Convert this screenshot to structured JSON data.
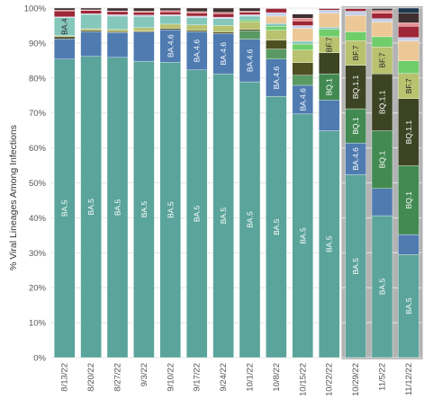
{
  "chart_data": {
    "type": "bar",
    "stacked": true,
    "ylabel": "% Viral Lineages Among Infections",
    "ylim": [
      0,
      100
    ],
    "yticks": [
      "0%",
      "10%",
      "20%",
      "30%",
      "40%",
      "50%",
      "60%",
      "70%",
      "80%",
      "90%",
      "100%"
    ],
    "grid": true,
    "categories": [
      "8/13/22",
      "8/20/22",
      "8/27/22",
      "9/3/22",
      "9/10/22",
      "9/17/22",
      "9/24/22",
      "10/1/22",
      "10/8/22",
      "10/15/22",
      "10/22/22",
      "10/29/22",
      "11/5/22",
      "11/12/22"
    ],
    "highlighted_categories": [
      "10/29/22",
      "11/5/22",
      "11/12/22"
    ],
    "highlight_color": "#b3b3b3",
    "series": [
      {
        "name": "BA.5",
        "color": "#5aa49b",
        "values": [
          85.4,
          86.2,
          85.9,
          84.8,
          84.5,
          82.3,
          81.2,
          78.9,
          74.7,
          69.7,
          64.9,
          52.3,
          40.6,
          29.5
        ]
      },
      {
        "name": "BA.4.6",
        "color": "#4f7bb1",
        "values": [
          5.8,
          7.0,
          7.1,
          8.3,
          9.3,
          10.9,
          11.5,
          12.2,
          10.7,
          8.2,
          8.8,
          9.1,
          7.8,
          5.7
        ]
      },
      {
        "name": "",
        "color": "#5a9a62",
        "values": [
          0,
          0,
          0,
          0,
          0,
          0,
          0,
          2.4,
          2.9,
          2.9,
          0,
          0,
          0,
          0
        ]
      },
      {
        "name": "BQ.1",
        "color": "#428a52",
        "values": [
          0,
          0,
          0,
          0,
          0,
          0,
          0,
          0,
          0,
          0,
          7.5,
          9.8,
          16.5,
          19.7
        ]
      },
      {
        "name": "BA.4",
        "color": "#4e4f22",
        "values": [
          0.6,
          0.4,
          0.3,
          0.3,
          0.4,
          0.4,
          0.4,
          0.4,
          2.5,
          3.6,
          0,
          0,
          0,
          0
        ]
      },
      {
        "name": "BQ.1.1",
        "color": "#3d4424",
        "values": [
          0,
          0,
          0,
          0,
          0,
          0,
          0,
          0,
          0,
          0,
          6.0,
          12.4,
          16.3,
          19.2
        ]
      },
      {
        "name": "BF.7",
        "color": "#b8c26f",
        "values": [
          0.3,
          0.5,
          0.6,
          1.0,
          1.2,
          1.6,
          1.9,
          2.2,
          2.9,
          3.6,
          4.6,
          7.1,
          7.7,
          7.2
        ]
      },
      {
        "name": "",
        "color": "#6fce6a",
        "values": [
          0,
          0,
          0,
          0,
          0,
          0,
          0,
          0.5,
          1.1,
          1.7,
          2.1,
          2.5,
          2.9,
          3.6
        ]
      },
      {
        "name": "",
        "color": "#85c7ba",
        "values": [
          5.2,
          4.1,
          3.8,
          3.2,
          2.4,
          2.1,
          2.0,
          1.1,
          0.8,
          0.8,
          0.6,
          0,
          0,
          0
        ]
      },
      {
        "name": "",
        "color": "#edc897",
        "values": [
          0,
          0,
          0,
          0,
          0,
          0,
          0,
          0,
          2.1,
          3.7,
          4.0,
          4.7,
          4.2,
          5.7
        ]
      },
      {
        "name": "",
        "color": "#c7d0e9",
        "values": [
          0.2,
          0.2,
          0.4,
          0.4,
          0.3,
          0.4,
          0.4,
          0.4,
          1.0,
          0.8,
          0.9,
          1.2,
          1.0,
          1.0
        ]
      },
      {
        "name": "",
        "color": "#9e2737",
        "values": [
          1.7,
          0.9,
          0.9,
          0.8,
          0.8,
          0.9,
          1.0,
          0.7,
          1.2,
          1.3,
          1.7,
          1.8,
          1.5,
          3.2
        ]
      },
      {
        "name": "",
        "color": "#e89293",
        "values": [
          0.2,
          0.2,
          0.2,
          0.3,
          0.4,
          0.4,
          0.4,
          0.3,
          1.2,
          0.8,
          1.3,
          0.7,
          0.8,
          1.0
        ]
      },
      {
        "name": "",
        "color": "#3f2f31",
        "values": [
          0.6,
          0.5,
          0.8,
          0.9,
          0.7,
          1.0,
          1.2,
          0.9,
          0.9,
          1.2,
          1.2,
          0.7,
          0.6,
          2.8
        ]
      },
      {
        "name": "",
        "color": "#1e3850",
        "values": [
          0,
          0,
          0,
          0,
          0,
          0,
          0,
          0,
          0,
          0,
          0.5,
          0.4,
          0.6,
          1.4
        ]
      }
    ],
    "segment_labels": [
      {
        "text": "BA.5",
        "category": 0,
        "series": 0
      },
      {
        "text": "BA.5",
        "category": 1,
        "series": 0
      },
      {
        "text": "BA.5",
        "category": 2,
        "series": 0
      },
      {
        "text": "BA.5",
        "category": 3,
        "series": 0
      },
      {
        "text": "BA.5",
        "category": 4,
        "series": 0
      },
      {
        "text": "BA.5",
        "category": 5,
        "series": 0
      },
      {
        "text": "BA.5",
        "category": 6,
        "series": 0
      },
      {
        "text": "BA.5",
        "category": 7,
        "series": 0
      },
      {
        "text": "BA.5",
        "category": 8,
        "series": 0
      },
      {
        "text": "BA.5",
        "category": 9,
        "series": 0
      },
      {
        "text": "BA.5",
        "category": 10,
        "series": 0
      },
      {
        "text": "BA.5",
        "category": 11,
        "series": 0
      },
      {
        "text": "BA.5",
        "category": 12,
        "series": 0
      },
      {
        "text": "BA.5",
        "category": 13,
        "series": 0
      },
      {
        "text": "BA.4",
        "category": 0,
        "series": 8
      },
      {
        "text": "BA.4.6",
        "category": 4,
        "series": 1
      },
      {
        "text": "BA.4.6",
        "category": 5,
        "series": 1
      },
      {
        "text": "BA.4.6",
        "category": 6,
        "series": 1
      },
      {
        "text": "BA.4.6",
        "category": 7,
        "series": 1
      },
      {
        "text": "BA.4.6",
        "category": 8,
        "series": 1
      },
      {
        "text": "BA.4.6",
        "category": 9,
        "series": 1
      },
      {
        "text": "BA.4.6",
        "category": 11,
        "series": 1
      },
      {
        "text": "BQ.1",
        "category": 10,
        "series": 3
      },
      {
        "text": "BQ.1",
        "category": 11,
        "series": 3
      },
      {
        "text": "BQ.1",
        "category": 12,
        "series": 3
      },
      {
        "text": "BQ.1",
        "category": 13,
        "series": 3
      },
      {
        "text": "BQ.1.1",
        "category": 11,
        "series": 5
      },
      {
        "text": "BQ.1.1",
        "category": 12,
        "series": 5
      },
      {
        "text": "BQ.1.1",
        "category": 13,
        "series": 5
      },
      {
        "text": "BF.7",
        "category": 10,
        "series": 6
      },
      {
        "text": "BF.7",
        "category": 11,
        "series": 6
      },
      {
        "text": "BF.7",
        "category": 12,
        "series": 6
      },
      {
        "text": "BF.7",
        "category": 13,
        "series": 6
      }
    ]
  }
}
